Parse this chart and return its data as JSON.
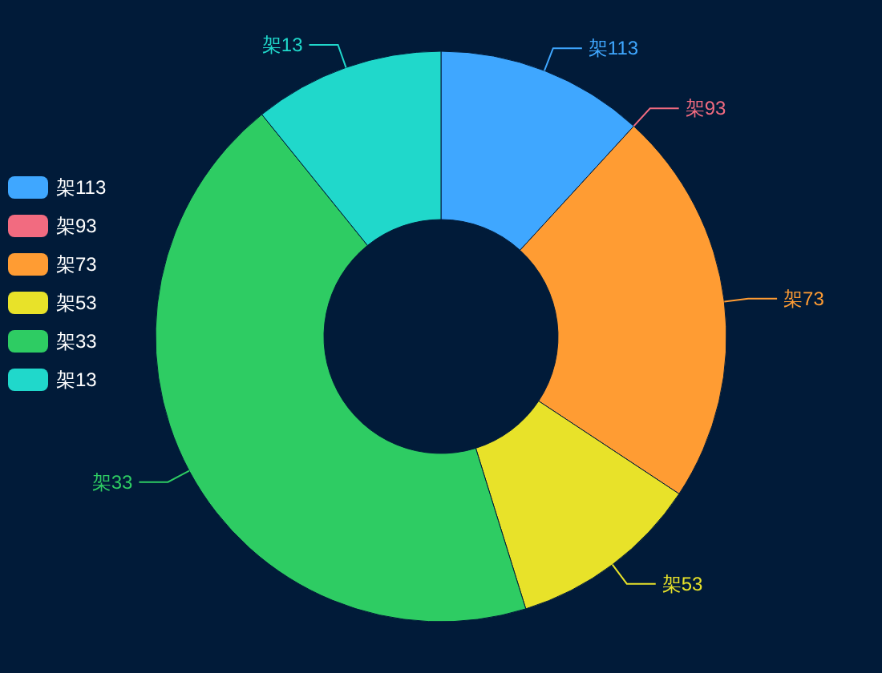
{
  "chart_data": {
    "type": "donut",
    "categories": [
      "架113",
      "架93",
      "架73",
      "架53",
      "架33",
      "架13"
    ],
    "values": [
      11.8,
      0,
      22.5,
      10.9,
      44,
      10.8
    ],
    "colors": [
      "#3fa7ff",
      "#f26b80",
      "#ff9c33",
      "#e8e229",
      "#2ecc63",
      "#20d8cb"
    ],
    "legend": "left"
  }
}
